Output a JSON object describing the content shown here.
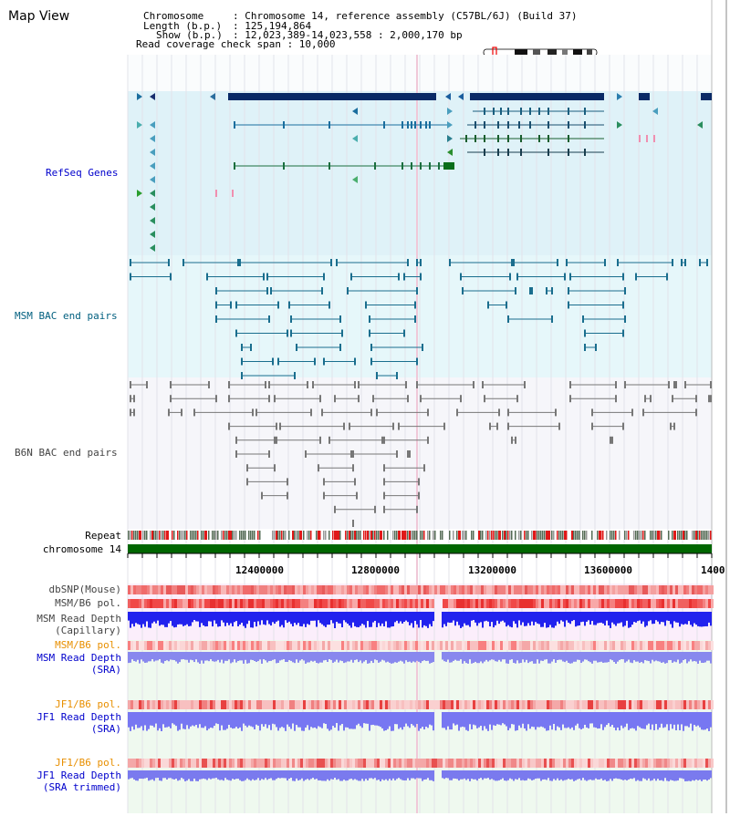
{
  "page_title": "Map View",
  "info": {
    "chromosome_key": "Chromosome",
    "chromosome_value": ": Chromosome 14, reference assembly (C57BL/6J) (Build 37)",
    "length_key": "Length (b.p.)",
    "length_value": ": 125,194,864",
    "show_key": "Show (b.p.)",
    "show_value": ": 12,023,389-14,023,558 : 2,000,170 bp",
    "coverage_line": "Read coverage check span : 10,000"
  },
  "tracks": {
    "refseq": "RefSeq Genes",
    "msm_bac": "MSM BAC end pairs",
    "b6n_bac": "B6N BAC end pairs",
    "repeat": "Repeat",
    "chromosome": "chromosome 14",
    "dbsnp": "dbSNP(Mouse)",
    "msm_b6_pol": "MSM/B6 pol.",
    "msm_read_depth_cap_1": "MSM Read Depth",
    "msm_read_depth_cap_2": "(Capillary)",
    "msm_b6_pol_2": "MSM/B6 pol.",
    "msm_read_depth_sra_1": "MSM Read Depth",
    "msm_read_depth_sra_2": "(SRA)",
    "jf1_b6_pol": "JF1/B6 pol.",
    "jf1_read_depth_sra_1": "JF1 Read Depth",
    "jf1_read_depth_sra_2": "(SRA)",
    "jf1_b6_pol_2": "JF1/B6 pol.",
    "jf1_read_depth_trim_1": "JF1 Read Depth",
    "jf1_read_depth_trim_2": "(SRA trimmed)"
  },
  "axis": {
    "ticks": [
      "12400000",
      "12800000",
      "13200000",
      "13600000",
      "1400"
    ]
  },
  "colors": {
    "refseq_bg": "#dff2f8",
    "msm_bg": "#e6f7fa",
    "b6n_bg": "#f6f6fa",
    "gene_dark": "#0a2a66",
    "msm_feature": "#1a6e8e",
    "b6n_feature": "#777777",
    "chromosome_bar": "#006600",
    "depth_blue": "#2222ee",
    "depth_light": "#7777f2"
  }
}
